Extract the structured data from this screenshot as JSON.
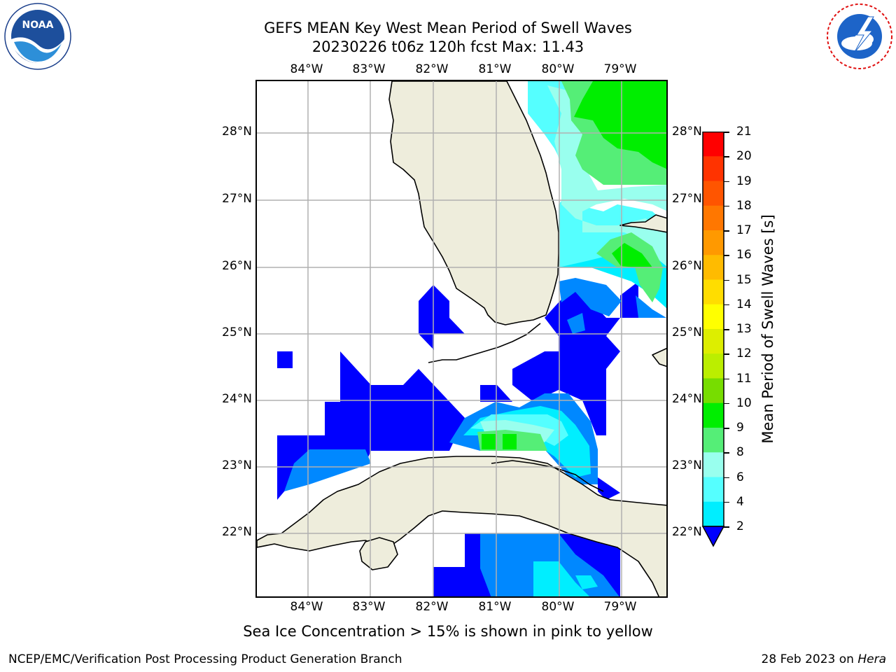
{
  "header": {
    "title_line1": "GEFS MEAN Key West Mean Period of Swell Waves",
    "title_line2": "20230226 t06z 120h fcst   Max: 11.43"
  },
  "logos": {
    "left": {
      "name": "noaa-logo",
      "text": "NOAA",
      "ring_text": "NATIONAL OCEANIC AND ATMOSPHERIC ADMINISTRATION · U.S. DEPARTMENT OF COMMERCE"
    },
    "right": {
      "name": "nws-logo",
      "ring_text": "NATIONAL WEATHER SERVICE"
    }
  },
  "map": {
    "lon_labels": [
      "84°W",
      "83°W",
      "82°W",
      "81°W",
      "80°W",
      "79°W"
    ],
    "lat_labels": [
      "28°N",
      "27°N",
      "26°N",
      "25°N",
      "24°N",
      "23°N",
      "22°N"
    ],
    "colors": {
      "land": "#eeeddc",
      "grid": "#b0b0b0",
      "coast": "#000000"
    }
  },
  "colorbar": {
    "label": "Mean Period of Swell Waves [s]",
    "ticks": [
      "21",
      "20",
      "19",
      "18",
      "17",
      "16",
      "15",
      "14",
      "13",
      "12",
      "11",
      "10",
      "9",
      "8",
      "6",
      "4",
      "2"
    ],
    "colors_top_to_bottom": [
      "#ff0000",
      "#ff3300",
      "#ff5500",
      "#ff7700",
      "#ff9900",
      "#ffbb00",
      "#ffdd00",
      "#ffff00",
      "#ddee00",
      "#bbee00",
      "#77dd00",
      "#00ee00",
      "#55ee77",
      "#99ffee",
      "#55ffff",
      "#00eeff",
      "#0088ff"
    ],
    "under_color": "#0000ff"
  },
  "chart_data": {
    "type": "heatmap",
    "variable": "Mean Period of Swell Waves",
    "units": "s",
    "max_value": 11.43,
    "levels": [
      2,
      4,
      6,
      8,
      9,
      10,
      11,
      12,
      13,
      14,
      15,
      16,
      17,
      18,
      19,
      20,
      21
    ],
    "lon_range": [
      -84.8,
      -78.4
    ],
    "lat_range": [
      21.05,
      28.75
    ],
    "lon_ticks": [
      -84,
      -83,
      -82,
      -81,
      -80,
      -79
    ],
    "lat_ticks": [
      28,
      27,
      26,
      25,
      24,
      23,
      22
    ],
    "grid": true
  },
  "notes": {
    "sea_ice": "Sea Ice Concentration > 15% is shown in pink to yellow"
  },
  "footer": {
    "left": "NCEP/EMC/Verification Post Processing Product Generation Branch",
    "right_prefix": "28 Feb 2023 on ",
    "right_host": "Hera"
  }
}
